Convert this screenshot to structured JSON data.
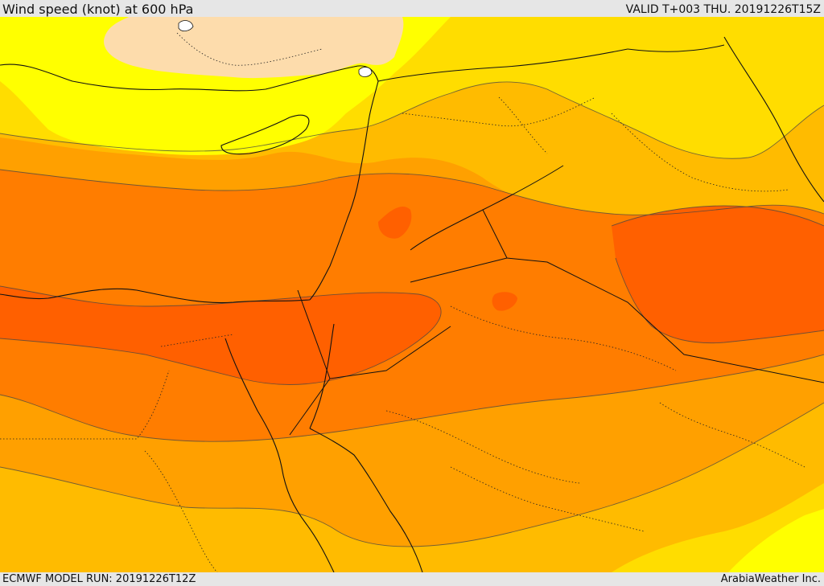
{
  "header": {
    "title": "Wind speed (knot) at 600 hPa",
    "valid": "VALID T+003 THU. 20191226T15Z"
  },
  "footer": {
    "model_run": "ECMWF MODEL RUN: 20191226T12Z",
    "credit": "ArabiaWeather Inc."
  },
  "map": {
    "variable": "wind speed",
    "level": "600 hPa",
    "units": "knot",
    "shading_colors": [
      "#fddcac",
      "#ffff00",
      "#ffdd00",
      "#ffbb00",
      "#ffa000",
      "#ff7d00",
      "#ff6000"
    ],
    "layers": [
      "wind-speed-shading",
      "contour-lines",
      "coastlines",
      "country-borders",
      "province-borders"
    ]
  }
}
